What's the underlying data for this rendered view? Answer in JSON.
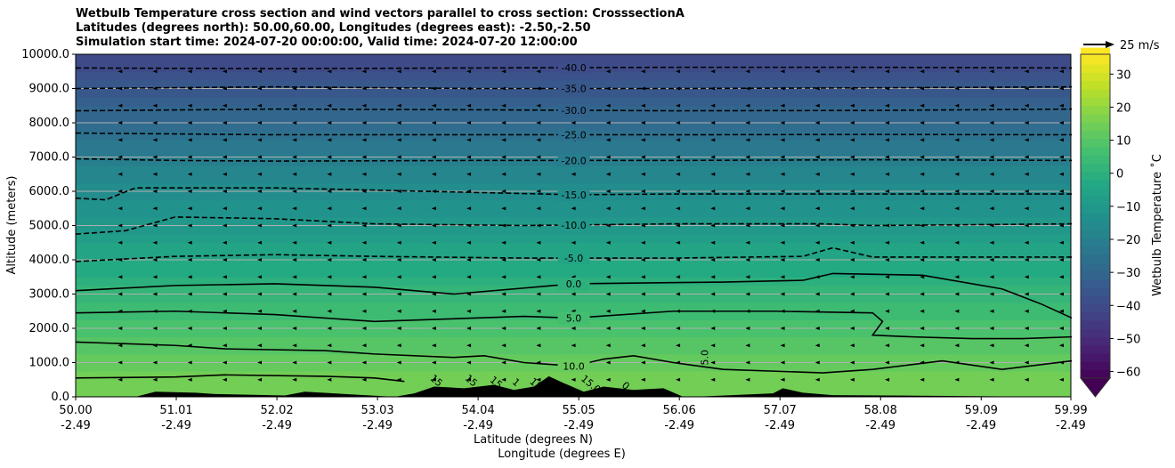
{
  "chart_data": {
    "type": "heatmap",
    "title_lines": [
      "Wetbulb Temperature cross section and wind vectors parallel to cross section: CrosssectionA",
      "Latitudes (degrees north): 50.00,60.00, Longitudes (degrees east): -2.50,-2.50",
      "Simulation start time: 2024-07-20 00:00:00, Valid time: 2024-07-20 12:00:00"
    ],
    "xlabel": "Latitude (degrees N)",
    "xlabel2": "Longitude (degrees E)",
    "ylabel": "Altitude (meters)",
    "xlim": [
      50.0,
      59.99
    ],
    "ylim": [
      0,
      10000
    ],
    "grid": "horizontal",
    "x_ticks": [
      {
        "lat": 50.0,
        "label": "50.00",
        "lon": "-2.49"
      },
      {
        "lat": 51.01,
        "label": "51.01",
        "lon": "-2.49"
      },
      {
        "lat": 52.02,
        "label": "52.02",
        "lon": "-2.49"
      },
      {
        "lat": 53.03,
        "label": "53.03",
        "lon": "-2.49"
      },
      {
        "lat": 54.04,
        "label": "54.04",
        "lon": "-2.49"
      },
      {
        "lat": 55.05,
        "label": "55.05",
        "lon": "-2.49"
      },
      {
        "lat": 56.06,
        "label": "56.06",
        "lon": "-2.49"
      },
      {
        "lat": 57.07,
        "label": "57.07",
        "lon": "-2.49"
      },
      {
        "lat": 58.08,
        "label": "58.08",
        "lon": "-2.49"
      },
      {
        "lat": 59.09,
        "label": "59.09",
        "lon": "-2.49"
      },
      {
        "lat": 59.99,
        "label": "59.99",
        "lon": "-2.49"
      }
    ],
    "y_ticks": [
      {
        "value": 0,
        "label": "0.0"
      },
      {
        "value": 1000,
        "label": "1000.0"
      },
      {
        "value": 2000,
        "label": "2000.0"
      },
      {
        "value": 3000,
        "label": "3000.0"
      },
      {
        "value": 4000,
        "label": "4000.0"
      },
      {
        "value": 5000,
        "label": "5000.0"
      },
      {
        "value": 6000,
        "label": "6000.0"
      },
      {
        "value": 7000,
        "label": "7000.0"
      },
      {
        "value": 8000,
        "label": "8000.0"
      },
      {
        "value": 9000,
        "label": "9000.0"
      },
      {
        "value": 10000,
        "label": "10000.0"
      }
    ],
    "temperature_profile": {
      "altitude": [
        0,
        1000,
        2000,
        3000,
        4000,
        5000,
        6000,
        7000,
        8000,
        9000,
        10000
      ],
      "wetbulb_c": [
        16,
        13,
        8,
        2,
        -4,
        -10,
        -15,
        -21,
        -28,
        -35,
        -42
      ]
    },
    "contours": [
      {
        "level": -40,
        "label": "-40.0",
        "lat": [
          50,
          52,
          54,
          56,
          58,
          60
        ],
        "alt": [
          9600,
          9580,
          9600,
          9620,
          9620,
          9600
        ]
      },
      {
        "level": -35,
        "label": "-35.0",
        "lat": [
          50,
          52,
          54,
          56,
          58,
          60
        ],
        "alt": [
          9000,
          9050,
          9000,
          9000,
          9020,
          9050
        ]
      },
      {
        "level": -30,
        "label": "-30.0",
        "lat": [
          50,
          52,
          54,
          56,
          58,
          60
        ],
        "alt": [
          8350,
          8400,
          8380,
          8350,
          8360,
          8400
        ]
      },
      {
        "level": -25,
        "label": "-25.0",
        "lat": [
          50,
          52,
          54,
          56,
          58,
          60
        ],
        "alt": [
          7700,
          7650,
          7650,
          7650,
          7660,
          7650
        ]
      },
      {
        "level": -20,
        "label": "-20.0",
        "lat": [
          50,
          51,
          52,
          54,
          56,
          58,
          60
        ],
        "alt": [
          6950,
          6900,
          6880,
          6900,
          6900,
          6920,
          6900
        ]
      },
      {
        "level": -15,
        "label": "-15.0",
        "lat": [
          50,
          50.3,
          50.6,
          52,
          53.5,
          55,
          56,
          58,
          60
        ],
        "alt": [
          5800,
          5750,
          6100,
          6100,
          6000,
          5900,
          5920,
          5920,
          5920
        ]
      },
      {
        "level": -10,
        "label": "-10.0",
        "lat": [
          50,
          50.5,
          51,
          52,
          53,
          54.5,
          56,
          57.5,
          58,
          60
        ],
        "alt": [
          4750,
          4850,
          5250,
          5200,
          5050,
          5000,
          5050,
          5050,
          5000,
          5050
        ]
      },
      {
        "level": -5,
        "label": "-5.0",
        "lat": [
          50,
          51,
          52,
          53,
          54.5,
          56,
          57.3,
          57.6,
          58,
          60
        ],
        "alt": [
          3950,
          4100,
          4150,
          4100,
          4050,
          4050,
          4100,
          4350,
          4080,
          4080
        ]
      },
      {
        "level": 0,
        "label": "0.0",
        "lat": [
          50,
          51,
          52,
          53,
          53.8,
          55,
          56.5,
          57.3,
          57.6,
          58.5,
          59.3,
          59.7,
          60
        ],
        "alt": [
          3100,
          3250,
          3300,
          3200,
          3000,
          3300,
          3350,
          3400,
          3600,
          3550,
          3150,
          2700,
          2300
        ]
      },
      {
        "level": 5,
        "label": "5.0",
        "lat": [
          50,
          51,
          52,
          53,
          54.5,
          55,
          56,
          57,
          58,
          58.1,
          58.0,
          58.4,
          59,
          59.5,
          60
        ],
        "alt": [
          2450,
          2500,
          2400,
          2200,
          2350,
          2300,
          2500,
          2500,
          2450,
          2200,
          1800,
          1750,
          1700,
          1700,
          1750
        ]
      },
      {
        "level": 10,
        "label": "10.0",
        "lat": [
          50,
          51,
          51.5,
          52.5,
          53,
          53.8,
          54.1,
          54.5,
          55,
          55.3,
          55.6,
          56,
          56.5,
          57.5,
          58,
          58.7,
          59.3,
          60
        ],
        "alt": [
          1600,
          1500,
          1400,
          1350,
          1250,
          1150,
          1200,
          1000,
          900,
          1100,
          1200,
          1000,
          800,
          700,
          800,
          1050,
          800,
          1050
        ]
      },
      {
        "level": 15,
        "label": "15",
        "lat": [
          50,
          51,
          51.5,
          52.5,
          53,
          53.3
        ],
        "alt": [
          550,
          580,
          640,
          600,
          550,
          450
        ]
      }
    ],
    "extra_contour_labels": [
      {
        "label": "15",
        "lat": 53.6,
        "alt": 400
      },
      {
        "label": "15",
        "lat": 53.95,
        "alt": 400
      },
      {
        "label": "15",
        "lat": 54.2,
        "alt": 350
      },
      {
        "label": "1",
        "lat": 54.4,
        "alt": 350
      },
      {
        "label": "15",
        "lat": 54.6,
        "alt": 300
      },
      {
        "label": "15.0",
        "lat": 55.15,
        "alt": 300
      },
      {
        "label": "0",
        "lat": 55.5,
        "alt": 250
      },
      {
        "label": "5.0",
        "lat": 56.35,
        "alt": 1150
      }
    ],
    "terrain": {
      "lat": [
        50,
        50.6,
        50.8,
        51.2,
        51.4,
        52.1,
        52.3,
        53.2,
        53.4,
        53.6,
        53.9,
        54.2,
        54.4,
        54.6,
        54.75,
        54.9,
        55.1,
        55.3,
        55.6,
        55.9,
        56.1,
        56.2,
        57.0,
        57.1,
        57.3,
        57.6,
        59.99
      ],
      "alt": [
        0,
        0,
        150,
        120,
        80,
        40,
        150,
        0,
        100,
        300,
        250,
        350,
        200,
        300,
        600,
        400,
        150,
        300,
        200,
        250,
        0,
        0,
        100,
        250,
        120,
        50,
        0
      ]
    },
    "wind": {
      "reference_label": "25 m/s",
      "lat_step": 0.35,
      "alt_step": 500,
      "u_typical": -1.5
    },
    "colorbar": {
      "label": "Wetbulb Temperature $^\\circ$C",
      "label_text": "Wetbulb Temperature ˚C",
      "range": [
        -62,
        36
      ],
      "ticks": [
        30,
        20,
        10,
        0,
        -10,
        -20,
        -30,
        -40,
        -50,
        -60
      ],
      "tick_labels": [
        "30",
        "20",
        "10",
        "0",
        "−10",
        "−20",
        "−30",
        "−40",
        "−50",
        "−60"
      ],
      "colormap": "viridis",
      "extend": "min"
    }
  }
}
